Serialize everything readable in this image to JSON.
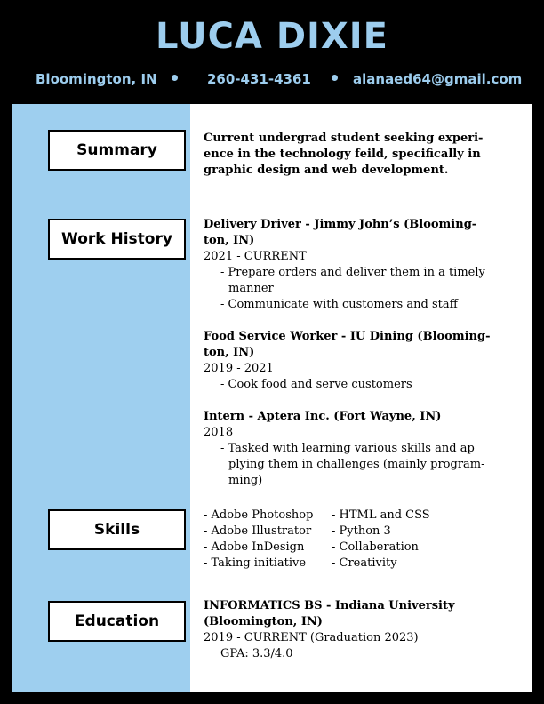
{
  "header": {
    "name": "LUCA DIXIE",
    "location": "Bloomington, IN",
    "phone": "260-431-4361",
    "email": "alanaed64@gmail.com"
  },
  "summary": {
    "heading": "Summary",
    "lines": [
      "Current undergrad student seeking experi-",
      "ence in the technology feild, specifically in",
      "graphic design and web development."
    ]
  },
  "work": {
    "heading": "Work History",
    "jobs": [
      {
        "title_lines": [
          "Delivery Driver - Jimmy John’s (Blooming-",
          "ton, IN)"
        ],
        "dates": "2021 - CURRENT",
        "bullets": [
          [
            "- Prepare orders and deliver them in a timely",
            "manner"
          ],
          [
            "- Communicate with customers and staff"
          ]
        ]
      },
      {
        "title_lines": [
          "Food Service Worker - IU Dining (Blooming-",
          "ton, IN)"
        ],
        "dates": "2019 - 2021",
        "bullets": [
          [
            "- Cook food and serve customers"
          ]
        ]
      },
      {
        "title_lines": [
          "Intern - Aptera Inc. (Fort Wayne, IN)"
        ],
        "dates": "2018",
        "bullets": [
          [
            "- Tasked with learning various skills and ap",
            "plying them in challenges (mainly program-",
            "ming)"
          ]
        ]
      }
    ]
  },
  "skills": {
    "heading": "Skills",
    "col1": [
      "- Adobe Photoshop",
      "- Adobe Illustrator",
      "- Adobe InDesign",
      "- Taking initiative"
    ],
    "col2": [
      "- HTML and CSS",
      "- Python 3",
      "- Collaberation",
      "- Creativity"
    ]
  },
  "education": {
    "heading": "Education",
    "title_lines": [
      "INFORMATICS BS - Indiana University",
      "(Bloomington, IN)"
    ],
    "dates": "2019 - CURRENT (Graduation 2023)",
    "gpa": "GPA: 3.3/4.0"
  }
}
